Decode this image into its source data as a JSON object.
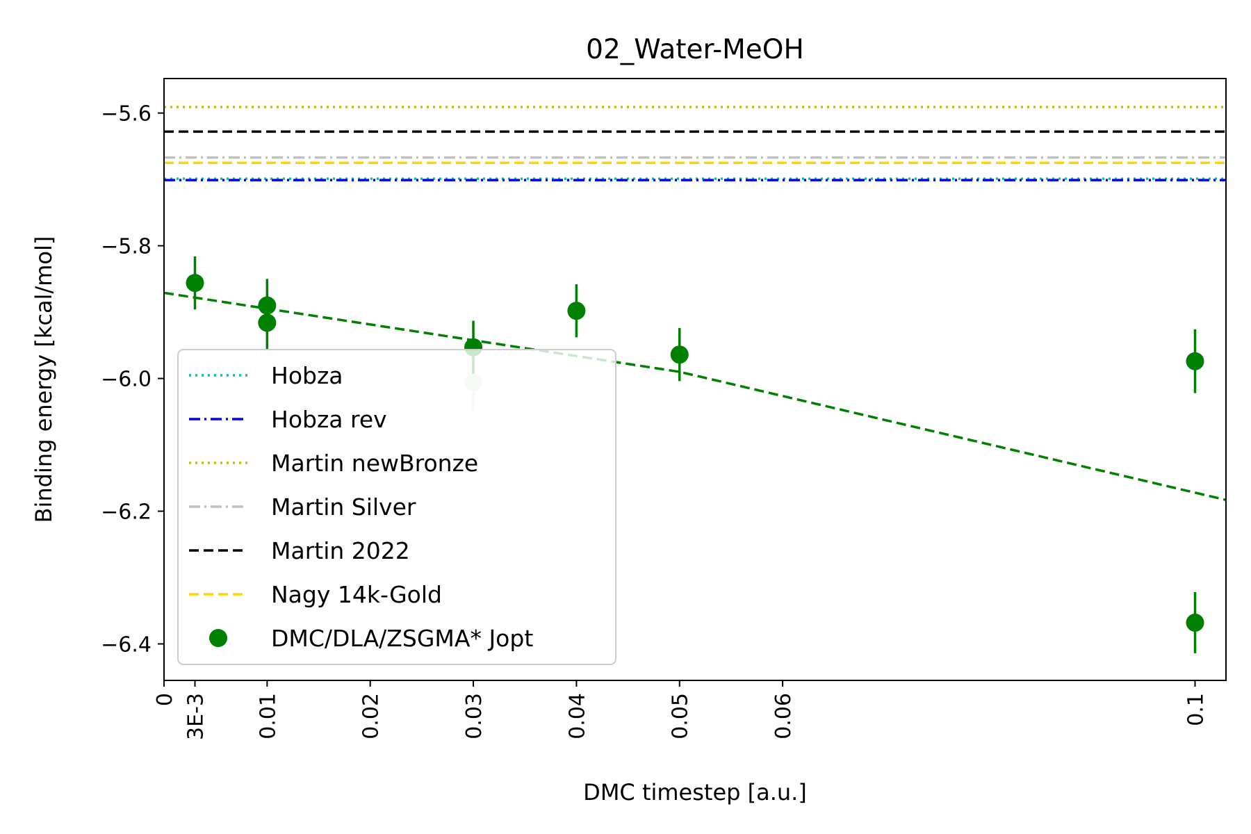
{
  "chart_data": {
    "type": "scatter",
    "title": "02_Water-MeOH",
    "xlabel": "DMC timestep [a.u.]",
    "ylabel": "Binding energy [kcal/mol]",
    "xlim": [
      0,
      0.103
    ],
    "ylim": [
      -6.455,
      -5.548
    ],
    "xticks": [
      {
        "value": 0,
        "label": "0"
      },
      {
        "value": 0.003,
        "label": "3E-3"
      },
      {
        "value": 0.01,
        "label": "0.01"
      },
      {
        "value": 0.02,
        "label": "0.02"
      },
      {
        "value": 0.03,
        "label": "0.03"
      },
      {
        "value": 0.04,
        "label": "0.04"
      },
      {
        "value": 0.05,
        "label": "0.05"
      },
      {
        "value": 0.06,
        "label": "0.06"
      },
      {
        "value": 0.1,
        "label": "0.1"
      }
    ],
    "yticks": [
      {
        "value": -5.6,
        "label": "−5.6"
      },
      {
        "value": -5.8,
        "label": "−5.8"
      },
      {
        "value": -6.0,
        "label": "−6.0"
      },
      {
        "value": -6.2,
        "label": "−6.2"
      },
      {
        "value": -6.4,
        "label": "−6.4"
      }
    ],
    "legend_position": "lower-left",
    "reference_lines": [
      {
        "name": "Hobza",
        "y": -5.699,
        "color": "#00bfbf",
        "style": "dotted"
      },
      {
        "name": "Hobza rev",
        "y": -5.701,
        "color": "#0000ff",
        "style": "dashdot"
      },
      {
        "name": "Martin newBronze",
        "y": -5.591,
        "color": "#bfbf00",
        "style": "dotted"
      },
      {
        "name": "Martin Silver",
        "y": -5.667,
        "color": "#c0c0c0",
        "style": "dashdot"
      },
      {
        "name": "Martin 2022",
        "y": -5.628,
        "color": "#000000",
        "style": "dashed"
      },
      {
        "name": "Nagy 14k-Gold",
        "y": -5.675,
        "color": "#ffd700",
        "style": "dashed"
      }
    ],
    "series": [
      {
        "name": "DMC/DLA/ZSGMA* Jopt",
        "color": "#008000",
        "points": [
          {
            "x": 0.003,
            "y": -5.856,
            "err": 0.04
          },
          {
            "x": 0.01,
            "y": -5.89,
            "err": 0.04
          },
          {
            "x": 0.01,
            "y": -5.916,
            "err": 0.04
          },
          {
            "x": 0.03,
            "y": -5.953,
            "err": 0.04
          },
          {
            "x": 0.04,
            "y": -5.898,
            "err": 0.04
          },
          {
            "x": 0.05,
            "y": -5.964,
            "err": 0.04
          },
          {
            "x": 0.1,
            "y": -5.974,
            "err": 0.048
          },
          {
            "x": 0.1,
            "y": -6.368,
            "err": 0.046
          }
        ],
        "faded_points": [
          {
            "x": 0.03,
            "y": -6.006,
            "err": 0.043
          }
        ]
      }
    ],
    "fit_line": {
      "color": "#008000",
      "style": "dashed",
      "points": [
        [
          0,
          -5.871
        ],
        [
          0.05,
          -5.99
        ],
        [
          0.103,
          -6.183
        ]
      ]
    }
  }
}
